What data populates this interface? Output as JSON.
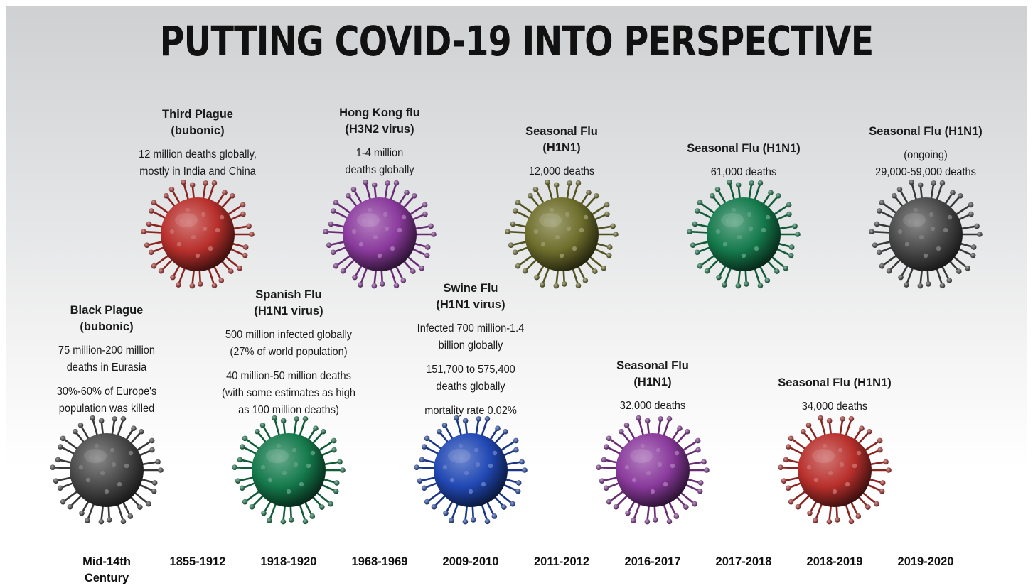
{
  "title": "PUTTING COVID-19 INTO PERSPECTIVE",
  "timeline": [
    {
      "period": "Mid-14th Century",
      "name": "Black Plague (bubonic)",
      "title_lines": [
        "Black Plague",
        "(bubonic)"
      ],
      "paragraphs": [
        [
          "75 million-200 million",
          "deaths in Eurasia"
        ],
        [
          "30%-60% of Europe's",
          "population was killed"
        ]
      ],
      "virus_color": "#4a4a4a",
      "position": "lower"
    },
    {
      "period": "1855-1912",
      "name": "Third Plague (bubonic)",
      "title_lines": [
        "Third Plague",
        "(bubonic)"
      ],
      "paragraphs": [
        [
          "12 million deaths globally,",
          "mostly in India and China"
        ]
      ],
      "virus_color": "#b8302c",
      "position": "upper"
    },
    {
      "period": "1918-1920",
      "name": "Spanish Flu (H1N1 virus)",
      "title_lines": [
        "Spanish Flu",
        "(H1N1 virus)"
      ],
      "paragraphs": [
        [
          "500 million infected globally",
          "(27% of world population)"
        ],
        [
          "40 million-50 million deaths",
          "(with some estimates as high",
          "as 100 million deaths)"
        ]
      ],
      "virus_color": "#157a4c",
      "position": "lower"
    },
    {
      "period": "1968-1969",
      "name": "Hong Kong flu (H3N2 virus)",
      "title_lines": [
        "Hong Kong flu",
        "(H3N2 virus)"
      ],
      "paragraphs": [
        [
          "1-4 million",
          "deaths globally"
        ]
      ],
      "virus_color": "#8a3a9c",
      "position": "upper"
    },
    {
      "period": "2009-2010",
      "name": "Swine Flu (H1N1 virus)",
      "title_lines": [
        "Swine Flu",
        "(H1N1 virus)"
      ],
      "paragraphs": [
        [
          "Infected 700 million-1.4",
          "billion globally"
        ],
        [
          "151,700 to 575,400",
          "deaths globally"
        ],
        [
          "mortality rate 0.02%"
        ]
      ],
      "virus_color": "#2148b4",
      "position": "lower"
    },
    {
      "period": "2011-2012",
      "name": "Seasonal Flu (H1N1)",
      "title_lines": [
        "Seasonal Flu",
        "(H1N1)"
      ],
      "paragraphs": [
        [
          "12,000 deaths"
        ]
      ],
      "virus_color": "#6e6e2c",
      "position": "upper"
    },
    {
      "period": "2016-2017",
      "name": "Seasonal Flu (H1N1)",
      "title_lines": [
        "Seasonal Flu",
        "(H1N1)"
      ],
      "paragraphs": [
        [
          "32,000 deaths"
        ]
      ],
      "virus_color": "#8a3a9c",
      "position": "lower"
    },
    {
      "period": "2017-2018",
      "name": "Seasonal Flu (H1N1)",
      "title_lines": [
        "Seasonal Flu (H1N1)"
      ],
      "paragraphs": [
        [
          "61,000 deaths"
        ]
      ],
      "virus_color": "#157a4c",
      "position": "upper"
    },
    {
      "period": "2018-2019",
      "name": "Seasonal Flu (H1N1)",
      "title_lines": [
        "Seasonal Flu (H1N1)"
      ],
      "paragraphs": [
        [
          "34,000 deaths"
        ]
      ],
      "virus_color": "#b8302c",
      "position": "lower"
    },
    {
      "period": "2019-2020",
      "name": "Seasonal Flu (H1N1)",
      "title_lines": [
        "Seasonal Flu (H1N1)"
      ],
      "paragraphs": [
        [
          "(ongoing)",
          "29,000-59,000 deaths"
        ]
      ],
      "virus_color": "#4a4a4a",
      "position": "upper"
    }
  ]
}
